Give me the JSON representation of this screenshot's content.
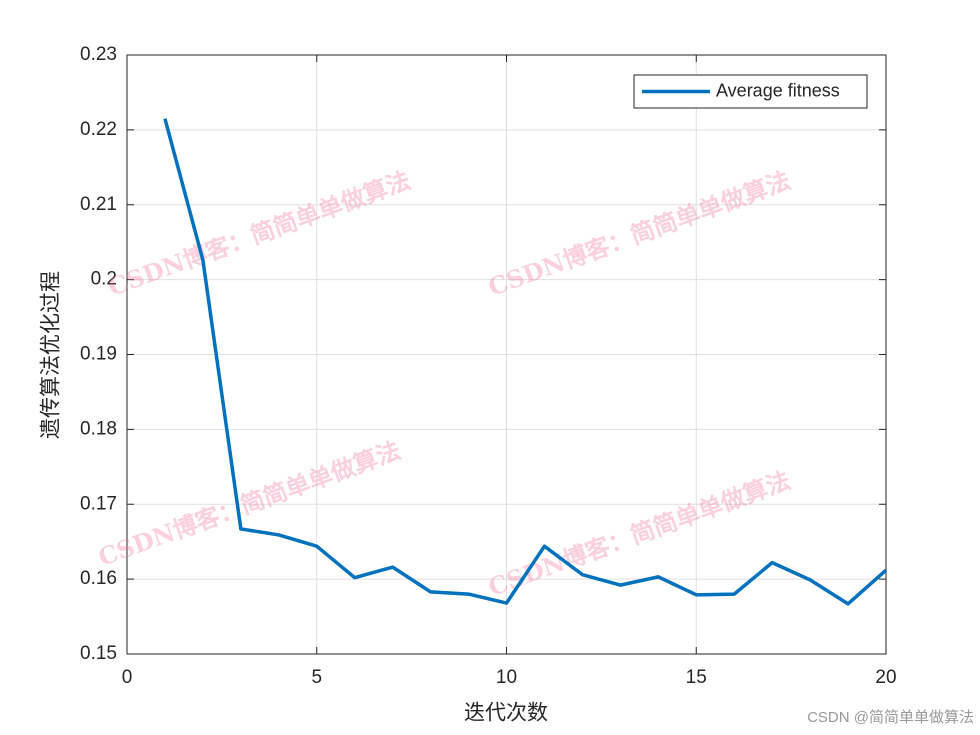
{
  "chart_data": {
    "type": "line",
    "xlabel": "迭代次数",
    "ylabel": "遗传算法优化过程",
    "x": [
      1,
      2,
      3,
      4,
      5,
      6,
      7,
      8,
      9,
      10,
      11,
      12,
      13,
      14,
      15,
      16,
      17,
      18,
      19,
      20
    ],
    "series": [
      {
        "name": "Average fitness",
        "color": "#0072bd",
        "values": [
          0.2215,
          0.2026,
          0.1667,
          0.1659,
          0.1644,
          0.1602,
          0.1616,
          0.1583,
          0.158,
          0.1568,
          0.1644,
          0.1606,
          0.1592,
          0.1603,
          0.1579,
          0.158,
          0.1622,
          0.1599,
          0.1567,
          0.1612
        ]
      }
    ],
    "xlim": [
      0,
      20
    ],
    "xticks": [
      0,
      5,
      10,
      15,
      20
    ],
    "ylim": [
      0.15,
      0.23
    ],
    "yticks": [
      0.15,
      0.16,
      0.17,
      0.18,
      0.19,
      0.2,
      0.21,
      0.22,
      0.23
    ],
    "grid": true,
    "legend": "top-right",
    "watermark": "CSDN博客：简简单单做算法",
    "footer": "CSDN @简简单单做算法"
  }
}
